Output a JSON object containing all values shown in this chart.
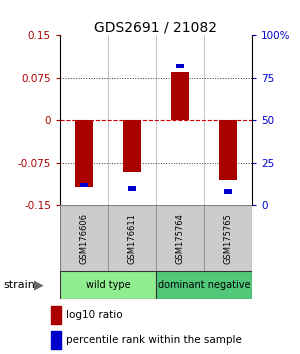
{
  "title": "GDS2691 / 21082",
  "samples": [
    "GSM176606",
    "GSM176611",
    "GSM175764",
    "GSM175765"
  ],
  "log10_ratios": [
    -0.118,
    -0.092,
    0.085,
    -0.105
  ],
  "percentile_ranks": [
    12,
    10,
    82,
    8
  ],
  "groups": [
    {
      "label": "wild type",
      "color": "#90ee90"
    },
    {
      "label": "dominant negative",
      "color": "#50c878"
    }
  ],
  "ylim": [
    -0.15,
    0.15
  ],
  "yticks_left": [
    -0.15,
    -0.075,
    0,
    0.075,
    0.15
  ],
  "yticks_right": [
    0,
    25,
    50,
    75,
    100
  ],
  "bar_color_red": "#aa0000",
  "bar_color_blue": "#0000cc",
  "hline_color": "#cc0000",
  "grid_color": "#333333",
  "sample_box_color": "#cccccc",
  "title_fontsize": 10,
  "legend_fontsize": 7.5,
  "tick_fontsize": 7.5,
  "label_fontsize": 7
}
